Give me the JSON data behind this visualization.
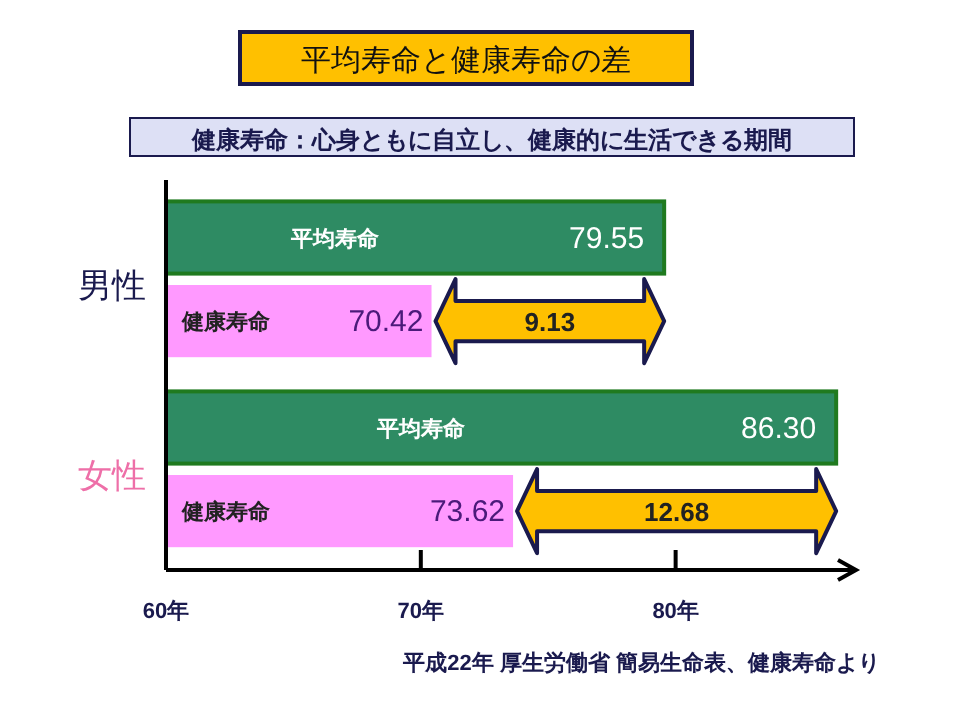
{
  "chart_data": {
    "type": "bar",
    "orientation": "horizontal",
    "title": "平均寿命と健康寿命の差",
    "subtitle": "健康寿命：心身ともに自立し、健康的に生活できる期間",
    "categories": [
      "男性",
      "女性"
    ],
    "series": [
      {
        "name": "平均寿命",
        "color": "#2e8b63",
        "values": [
          79.55,
          86.3
        ],
        "value_labels": [
          "79.55",
          "86.30"
        ]
      },
      {
        "name": "健康寿命",
        "color": "#ff99ff",
        "values": [
          70.42,
          73.62
        ],
        "value_labels": [
          "70.42",
          "73.62"
        ]
      }
    ],
    "xlim": [
      60,
      87
    ],
    "xticks": [
      {
        "value": 60,
        "label": "60年"
      },
      {
        "value": 70,
        "label": "70年"
      },
      {
        "value": 80,
        "label": "80年"
      }
    ],
    "annotations": [
      "9.13",
      "12.68",
      "平成22年 厚生労働省 簡易生命表、健康寿命より"
    ],
    "grid": false,
    "legend": false
  }
}
